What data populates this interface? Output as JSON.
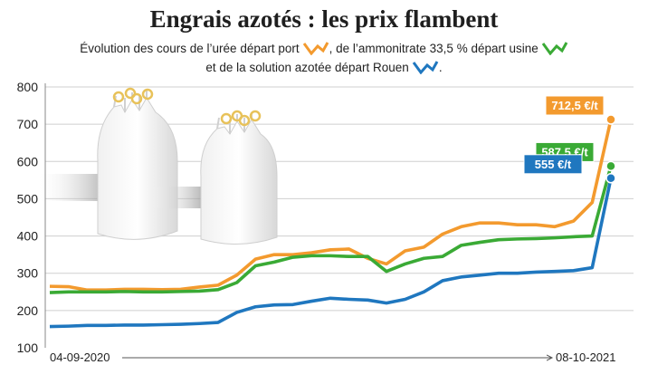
{
  "title": "Engrais azotés : les prix flambent",
  "subtitle": {
    "part1": "Évolution des cours de l’urée départ port",
    "part2": ", de l’ammonitrate 33,5 % départ usine",
    "part3": "et de la solution azotée départ Rouen"
  },
  "colors": {
    "uree": "#f39a2e",
    "ammonitrate": "#3aaa35",
    "solution": "#1f77bf",
    "grid": "#cfcfcf"
  },
  "chart_data": {
    "type": "line",
    "title": "Engrais azotés : les prix flambent",
    "x_start_label": "04-09-2020",
    "x_end_label": "08-10-2021",
    "x": [
      0,
      2,
      4,
      6,
      8,
      10,
      12,
      14,
      16,
      18,
      20,
      22,
      24,
      26,
      28,
      30,
      32,
      34,
      36,
      38,
      40,
      42,
      44,
      46,
      48,
      50,
      52,
      54,
      56,
      58,
      60
    ],
    "ylim": [
      100,
      800
    ],
    "yticks": [
      100,
      200,
      300,
      400,
      500,
      600,
      700,
      800
    ],
    "grid": true,
    "series": [
      {
        "key": "uree",
        "values": [
          265,
          264,
          255,
          255,
          257,
          257,
          256,
          257,
          263,
          268,
          295,
          338,
          350,
          350,
          355,
          363,
          365,
          340,
          325,
          360,
          370,
          405,
          425,
          435,
          435,
          430,
          430,
          425,
          440,
          490,
          712.5
        ]
      },
      {
        "key": "ammonitrate",
        "values": [
          248,
          250,
          250,
          250,
          251,
          250,
          250,
          251,
          252,
          256,
          275,
          320,
          330,
          343,
          347,
          347,
          345,
          345,
          305,
          325,
          340,
          345,
          375,
          383,
          390,
          392,
          393,
          395,
          398,
          400,
          587.5
        ]
      },
      {
        "key": "solution",
        "values": [
          157,
          158,
          160,
          160,
          161,
          161,
          162,
          163,
          165,
          168,
          195,
          210,
          215,
          216,
          225,
          233,
          230,
          228,
          220,
          230,
          250,
          280,
          290,
          295,
          300,
          300,
          303,
          305,
          307,
          315,
          555
        ]
      }
    ],
    "annotations": [
      {
        "series": "uree",
        "label": "712,5 €/t"
      },
      {
        "series": "ammonitrate",
        "label": "587,5 €/t"
      },
      {
        "series": "solution",
        "label": "555 €/t"
      }
    ]
  }
}
